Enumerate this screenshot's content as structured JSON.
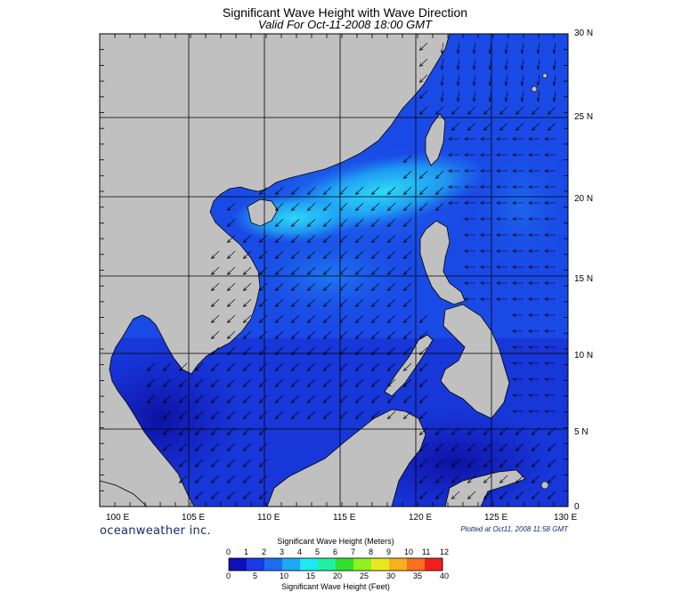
{
  "map": {
    "title": "Significant Wave Height with Wave Direction",
    "subtitle": "Valid For Oct-11-2008 18:00 GMT",
    "lon_labels": [
      "100 E",
      "105 E",
      "110 E",
      "115 E",
      "120 E",
      "125 E",
      "130 E"
    ],
    "lat_labels": [
      "30 N",
      "25 N",
      "20 N",
      "15 N",
      "10 N",
      "5 N",
      "0"
    ],
    "brand": "oceanweather inc.",
    "plotted": "Plotted at Oct11, 2008 11:58 GMT"
  },
  "legend": {
    "meters_title": "Significant Wave Height (Meters)",
    "meters_ticks": [
      "0",
      "1",
      "2",
      "3",
      "4",
      "5",
      "6",
      "7",
      "8",
      "9",
      "10",
      "11",
      "12"
    ],
    "feet_title": "Significant Wave Height (Feet)",
    "feet_ticks": [
      "0",
      "5",
      "10",
      "15",
      "20",
      "25",
      "30",
      "35",
      "40"
    ],
    "colors": [
      "#1010b8",
      "#1a3ae8",
      "#1f6cf0",
      "#20a8f8",
      "#20e8f0",
      "#20f0a0",
      "#30e030",
      "#90f020",
      "#e8e820",
      "#f8b020",
      "#f87020",
      "#f02020"
    ]
  },
  "colors": {
    "land": "#c0c0c0",
    "sea_deep": "#1414b8",
    "sea_mid": "#1a4ae6",
    "sea_light": "#1f8cf4",
    "sea_peak": "#22bff8"
  }
}
